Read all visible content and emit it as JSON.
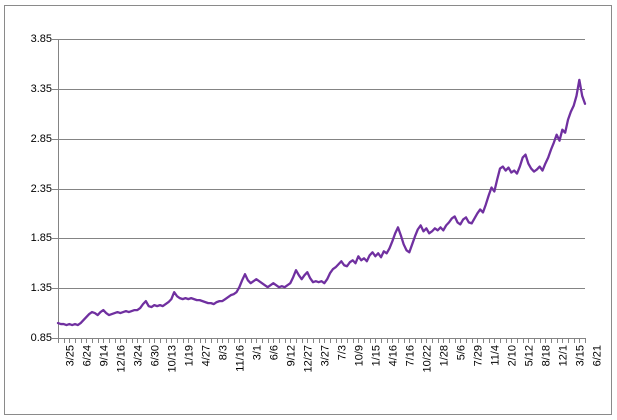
{
  "window": {
    "background_color": "#ffffff",
    "border_color": "#8a8a8a"
  },
  "chart_data": {
    "type": "line",
    "title": "",
    "xlabel": "",
    "ylabel": "",
    "legend": "none",
    "grid": "horizontal",
    "series_name": "series-1",
    "line_color": "#7030A0",
    "axis_color": "#848484",
    "gridline_color": "#848484",
    "tick_label_color": "#000000",
    "ylim": [
      0.85,
      3.85
    ],
    "y_ticks": [
      3.85,
      3.35,
      2.85,
      2.35,
      1.85,
      1.35,
      0.85
    ],
    "ticks_per_label": 3,
    "x_labels": [
      "3/25",
      "6/24",
      "9/14",
      "12/16",
      "3/24",
      "6/30",
      "10/13",
      "1/19",
      "4/27",
      "8/3",
      "11/16",
      "3/1",
      "6/6",
      "9/12",
      "12/27",
      "3/27",
      "7/3",
      "10/9",
      "1/15",
      "4/16",
      "7/16",
      "10/22",
      "1/28",
      "5/6",
      "7/29",
      "11/4",
      "2/10",
      "5/12",
      "8/18",
      "12/1",
      "3/15",
      "6/21"
    ],
    "values": [
      1.0,
      0.99,
      0.99,
      0.98,
      0.99,
      0.98,
      0.99,
      0.98,
      1.0,
      1.03,
      1.06,
      1.09,
      1.11,
      1.1,
      1.08,
      1.11,
      1.13,
      1.1,
      1.08,
      1.09,
      1.1,
      1.11,
      1.1,
      1.11,
      1.12,
      1.11,
      1.12,
      1.13,
      1.13,
      1.15,
      1.19,
      1.22,
      1.17,
      1.16,
      1.18,
      1.17,
      1.18,
      1.17,
      1.19,
      1.21,
      1.24,
      1.31,
      1.27,
      1.25,
      1.24,
      1.25,
      1.24,
      1.25,
      1.24,
      1.23,
      1.23,
      1.22,
      1.21,
      1.2,
      1.2,
      1.19,
      1.21,
      1.22,
      1.22,
      1.24,
      1.26,
      1.28,
      1.29,
      1.31,
      1.36,
      1.43,
      1.49,
      1.43,
      1.4,
      1.42,
      1.44,
      1.42,
      1.4,
      1.38,
      1.36,
      1.38,
      1.4,
      1.38,
      1.36,
      1.37,
      1.36,
      1.38,
      1.4,
      1.46,
      1.53,
      1.48,
      1.44,
      1.48,
      1.51,
      1.45,
      1.41,
      1.42,
      1.41,
      1.42,
      1.4,
      1.44,
      1.5,
      1.54,
      1.56,
      1.59,
      1.62,
      1.58,
      1.57,
      1.61,
      1.63,
      1.6,
      1.67,
      1.63,
      1.65,
      1.62,
      1.68,
      1.71,
      1.67,
      1.7,
      1.66,
      1.72,
      1.7,
      1.75,
      1.82,
      1.9,
      1.96,
      1.88,
      1.79,
      1.73,
      1.71,
      1.79,
      1.87,
      1.94,
      1.98,
      1.92,
      1.95,
      1.9,
      1.92,
      1.95,
      1.93,
      1.96,
      1.93,
      1.98,
      2.01,
      2.05,
      2.07,
      2.01,
      1.99,
      2.04,
      2.06,
      2.01,
      2.0,
      2.05,
      2.1,
      2.14,
      2.11,
      2.19,
      2.28,
      2.36,
      2.32,
      2.44,
      2.55,
      2.57,
      2.53,
      2.56,
      2.51,
      2.53,
      2.5,
      2.57,
      2.66,
      2.69,
      2.6,
      2.55,
      2.52,
      2.54,
      2.57,
      2.53,
      2.6,
      2.66,
      2.74,
      2.81,
      2.89,
      2.83,
      2.94,
      2.91,
      3.04,
      3.12,
      3.18,
      3.28,
      3.44,
      3.28,
      3.2
    ]
  }
}
